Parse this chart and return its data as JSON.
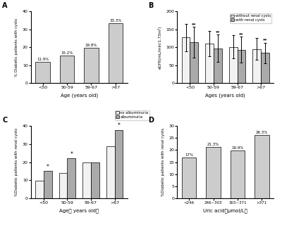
{
  "A": {
    "categories": [
      "<50",
      "50-59",
      "59-67",
      ">67"
    ],
    "values": [
      11.9,
      15.2,
      19.8,
      33.3
    ],
    "labels": [
      "11.9%",
      "15.2%",
      "19.8%",
      "33.3%"
    ],
    "xlabel": "Age (years old)",
    "ylabel": "% Diabetic patients with cysts",
    "ylim": [
      0,
      40
    ],
    "yticks": [
      0,
      10,
      20,
      30,
      40
    ],
    "bar_color": "#cccccc",
    "panel_label": "A"
  },
  "B": {
    "categories": [
      "<50",
      "50-59",
      "59-67",
      ">67"
    ],
    "without_mean": [
      127,
      110,
      101,
      95
    ],
    "without_err": [
      38,
      35,
      33,
      30
    ],
    "with_mean": [
      113,
      97,
      93,
      84
    ],
    "with_err": [
      43,
      38,
      36,
      28
    ],
    "xlabel": "Ages (years old)",
    "ylabel": "eGFR(mL/min/1.73m²)",
    "ylim": [
      0,
      200
    ],
    "yticks": [
      0,
      50,
      100,
      150,
      200
    ],
    "color_without": "#f2f2f2",
    "color_with": "#aaaaaa",
    "panel_label": "B",
    "sig_labels": [
      "**",
      "**",
      "**",
      "**"
    ]
  },
  "C": {
    "categories": [
      "<50",
      "50-59",
      "59-67",
      ">67"
    ],
    "no_alb_values": [
      9.5,
      14.0,
      20.0,
      29.0
    ],
    "alb_values": [
      15.0,
      22.0,
      20.0,
      38.0
    ],
    "xlabel": "Age（ years old）",
    "ylabel": "%Diabetic patients with renal cysts",
    "ylim": [
      0,
      40
    ],
    "yticks": [
      0,
      10,
      20,
      30,
      40
    ],
    "color_no_alb": "#f2f2f2",
    "color_alb": "#aaaaaa",
    "panel_label": "C",
    "sig_labels_alb": [
      "*",
      "*",
      "",
      "*"
    ]
  },
  "D": {
    "categories": [
      "<246",
      "246~303",
      "303~371",
      ">371"
    ],
    "values": [
      17.0,
      21.3,
      19.9,
      26.3
    ],
    "labels": [
      "17%",
      "21.3%",
      "19.9%",
      "26.3%"
    ],
    "xlabel": "Uric acid（μmol/L）",
    "ylabel": "%Diabetic patients with renal cysts",
    "ylim": [
      0,
      30
    ],
    "yticks": [
      0,
      5,
      10,
      15,
      20,
      25,
      30
    ],
    "bar_color": "#cccccc",
    "panel_label": "D"
  }
}
